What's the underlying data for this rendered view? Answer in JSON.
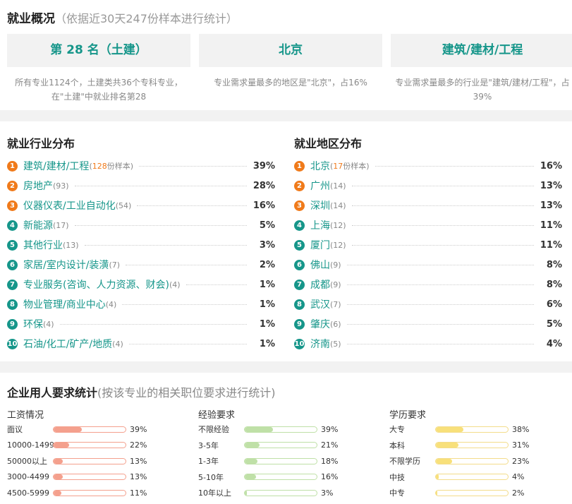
{
  "overview": {
    "title": "就业概况",
    "subtitle": "（依据近30天247份样本进行统计）",
    "cards": [
      {
        "heading": "第 28 名（土建）",
        "desc": "所有专业1124个，土建类共36个专科专业，在\"土建\"中就业排名第28"
      },
      {
        "heading": "北京",
        "desc": "专业需求量最多的地区是\"北京\"，占16%"
      },
      {
        "heading": "建筑/建材/工程",
        "desc": "专业需求量最多的行业是\"建筑/建材/工程\"，占39%"
      }
    ]
  },
  "industry": {
    "title": "就业行业分布",
    "sample_suffix": "份样本",
    "items": [
      {
        "rank": "1",
        "name": "建筑/建材/工程",
        "count": "128",
        "pct": "39%"
      },
      {
        "rank": "2",
        "name": "房地产",
        "count": "(93)",
        "pct": "28%"
      },
      {
        "rank": "3",
        "name": "仪器仪表/工业自动化",
        "count": "(54)",
        "pct": "16%"
      },
      {
        "rank": "4",
        "name": "新能源",
        "count": "(17)",
        "pct": "5%"
      },
      {
        "rank": "5",
        "name": "其他行业",
        "count": "(13)",
        "pct": "3%"
      },
      {
        "rank": "6",
        "name": "家居/室内设计/装潢",
        "count": "(7)",
        "pct": "2%"
      },
      {
        "rank": "7",
        "name": "专业服务(咨询、人力资源、财会)",
        "count": "(4)",
        "pct": "1%"
      },
      {
        "rank": "8",
        "name": "物业管理/商业中心",
        "count": "(4)",
        "pct": "1%"
      },
      {
        "rank": "9",
        "name": "环保",
        "count": "(4)",
        "pct": "1%"
      },
      {
        "rank": "10",
        "name": "石油/化工/矿产/地质",
        "count": "(4)",
        "pct": "1%"
      }
    ]
  },
  "region": {
    "title": "就业地区分布",
    "sample_suffix": "份样本",
    "items": [
      {
        "rank": "1",
        "name": "北京",
        "count": "17",
        "pct": "16%"
      },
      {
        "rank": "2",
        "name": "广州",
        "count": "(14)",
        "pct": "13%"
      },
      {
        "rank": "3",
        "name": "深圳",
        "count": "(14)",
        "pct": "13%"
      },
      {
        "rank": "4",
        "name": "上海",
        "count": "(12)",
        "pct": "11%"
      },
      {
        "rank": "5",
        "name": "厦门",
        "count": "(12)",
        "pct": "11%"
      },
      {
        "rank": "6",
        "name": "佛山",
        "count": "(9)",
        "pct": "8%"
      },
      {
        "rank": "7",
        "name": "成都",
        "count": "(9)",
        "pct": "8%"
      },
      {
        "rank": "8",
        "name": "武汉",
        "count": "(7)",
        "pct": "6%"
      },
      {
        "rank": "9",
        "name": "肇庆",
        "count": "(6)",
        "pct": "5%"
      },
      {
        "rank": "10",
        "name": "济南",
        "count": "(5)",
        "pct": "4%"
      }
    ]
  },
  "requirements": {
    "title": "企业用人要求统计",
    "subtitle": "(按该专业的相关职位要求进行统计)",
    "columns": [
      {
        "title": "工资情况",
        "fill": "#f4a08d",
        "border": "#f4a08d",
        "rows": [
          {
            "label": "面议",
            "value": 39,
            "pct": "39%"
          },
          {
            "label": "10000-14999",
            "value": 22,
            "pct": "22%"
          },
          {
            "label": "50000以上",
            "value": 13,
            "pct": "13%"
          },
          {
            "label": "3000-4499",
            "value": 13,
            "pct": "13%"
          },
          {
            "label": "4500-5999",
            "value": 11,
            "pct": "11%"
          }
        ]
      },
      {
        "title": "经验要求",
        "fill": "#bfe0a7",
        "border": "#bfe0a7",
        "rows": [
          {
            "label": "不限经验",
            "value": 39,
            "pct": "39%"
          },
          {
            "label": "3-5年",
            "value": 21,
            "pct": "21%"
          },
          {
            "label": "1-3年",
            "value": 18,
            "pct": "18%"
          },
          {
            "label": "5-10年",
            "value": 16,
            "pct": "16%"
          },
          {
            "label": "10年以上",
            "value": 3,
            "pct": "3%"
          }
        ]
      },
      {
        "title": "学历要求",
        "fill": "#f8e07a",
        "border": "#f3dc8a",
        "rows": [
          {
            "label": "大专",
            "value": 38,
            "pct": "38%"
          },
          {
            "label": "本科",
            "value": 31,
            "pct": "31%"
          },
          {
            "label": "不限学历",
            "value": 23,
            "pct": "23%"
          },
          {
            "label": "中技",
            "value": 4,
            "pct": "4%"
          },
          {
            "label": "中专",
            "value": 2,
            "pct": "2%"
          }
        ]
      }
    ]
  }
}
